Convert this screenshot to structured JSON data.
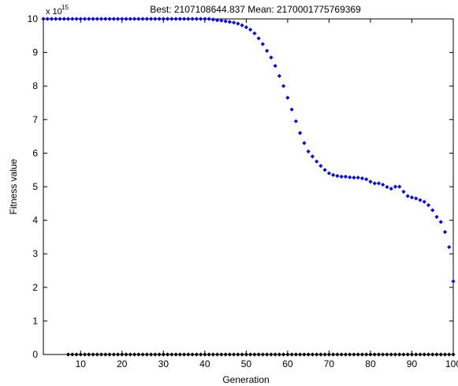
{
  "chart_data": {
    "type": "scatter",
    "title": "Best: 2107108644.837 Mean: 2170001775769369",
    "xlabel": "Generation",
    "ylabel": "Fitness value",
    "y_scale_base": "x 10",
    "y_scale_exponent": "15",
    "xlim": [
      1,
      100
    ],
    "ylim": [
      0,
      10
    ],
    "xticks": [
      "10",
      "20",
      "30",
      "40",
      "50",
      "60",
      "70",
      "80",
      "90",
      "100"
    ],
    "yticks": [
      "0",
      "1",
      "2",
      "3",
      "4",
      "5",
      "6",
      "7",
      "8",
      "9",
      "10"
    ],
    "series": [
      {
        "color": "#0000ff",
        "marker": "diamond",
        "x": [
          1,
          2,
          3,
          4,
          5,
          6,
          7,
          8,
          9,
          10,
          11,
          12,
          13,
          14,
          15,
          16,
          17,
          18,
          19,
          20,
          21,
          22,
          23,
          24,
          25,
          26,
          27,
          28,
          29,
          30,
          31,
          32,
          33,
          34,
          35,
          36,
          37,
          38,
          39,
          40,
          41,
          42,
          43,
          44,
          45,
          46,
          47,
          48,
          49,
          50,
          51,
          52,
          53,
          54,
          55,
          56,
          57,
          58,
          59,
          60,
          61,
          62,
          63,
          64,
          65,
          66,
          67,
          68,
          69,
          70,
          71,
          72,
          73,
          74,
          75,
          76,
          77,
          78,
          79,
          80,
          81,
          82,
          83,
          84,
          85,
          86,
          87,
          88,
          89,
          90,
          91,
          92,
          93,
          94,
          95,
          96,
          97,
          98,
          99,
          100
        ],
        "y": [
          10,
          10,
          10,
          10,
          10,
          10,
          10,
          10,
          10,
          10,
          10,
          10,
          10,
          10,
          10,
          10,
          10,
          10,
          10,
          10,
          10,
          10,
          10,
          10,
          10,
          10,
          10,
          10,
          10,
          10,
          10,
          10,
          10,
          10,
          10,
          10,
          10,
          10,
          10,
          10,
          10,
          9.98,
          9.96,
          9.95,
          9.93,
          9.91,
          9.89,
          9.86,
          9.81,
          9.75,
          9.68,
          9.57,
          9.42,
          9.25,
          9.05,
          8.85,
          8.6,
          8.3,
          8.0,
          7.65,
          7.3,
          6.95,
          6.6,
          6.3,
          6.05,
          5.9,
          5.75,
          5.62,
          5.5,
          5.4,
          5.35,
          5.32,
          5.3,
          5.3,
          5.28,
          5.27,
          5.27,
          5.25,
          5.22,
          5.15,
          5.1,
          5.1,
          5.06,
          4.99,
          4.94,
          5.0,
          5.0,
          4.85,
          4.72,
          4.68,
          4.65,
          4.6,
          4.55,
          4.45,
          4.3,
          4.1,
          3.95,
          3.65,
          3.2,
          2.18
        ]
      },
      {
        "color": "#000000",
        "marker": "diamond",
        "x": [
          7,
          8,
          9,
          10,
          11,
          12,
          13,
          14,
          15,
          16,
          17,
          18,
          19,
          20,
          21,
          22,
          23,
          24,
          25,
          26,
          27,
          28,
          29,
          30,
          31,
          32,
          33,
          34,
          35,
          36,
          37,
          38,
          39,
          40,
          41,
          42,
          43,
          44,
          45,
          46,
          47,
          48,
          49,
          50,
          51,
          52,
          53,
          54,
          55,
          56,
          57,
          58,
          59,
          60,
          61,
          62,
          63,
          64,
          65,
          66,
          67,
          68,
          69,
          70,
          71,
          72,
          73,
          74,
          75,
          76,
          77,
          78,
          79,
          80,
          81,
          82,
          83,
          84,
          85,
          86,
          87,
          88,
          89,
          90,
          91,
          92,
          93,
          94,
          95,
          96,
          97,
          98,
          99,
          100
        ],
        "y": [
          0,
          0,
          0,
          0,
          0,
          0,
          0,
          0,
          0,
          0,
          0,
          0,
          0,
          0,
          0,
          0,
          0,
          0,
          0,
          0,
          0,
          0,
          0,
          0,
          0,
          0,
          0,
          0,
          0,
          0,
          0,
          0,
          0,
          0,
          0,
          0,
          0,
          0,
          0,
          0,
          0,
          0,
          0,
          0,
          0,
          0,
          0,
          0,
          0,
          0,
          0,
          0,
          0,
          0,
          0,
          0,
          0,
          0,
          0,
          0,
          0,
          0,
          0,
          0,
          0,
          0,
          0,
          0,
          0,
          0,
          0,
          0,
          0,
          0,
          0,
          0,
          0,
          0,
          0,
          0,
          0,
          0,
          0,
          0,
          0,
          0,
          0,
          0,
          0,
          0,
          0,
          0,
          0,
          0
        ]
      }
    ],
    "grid": false,
    "legend": "none"
  }
}
